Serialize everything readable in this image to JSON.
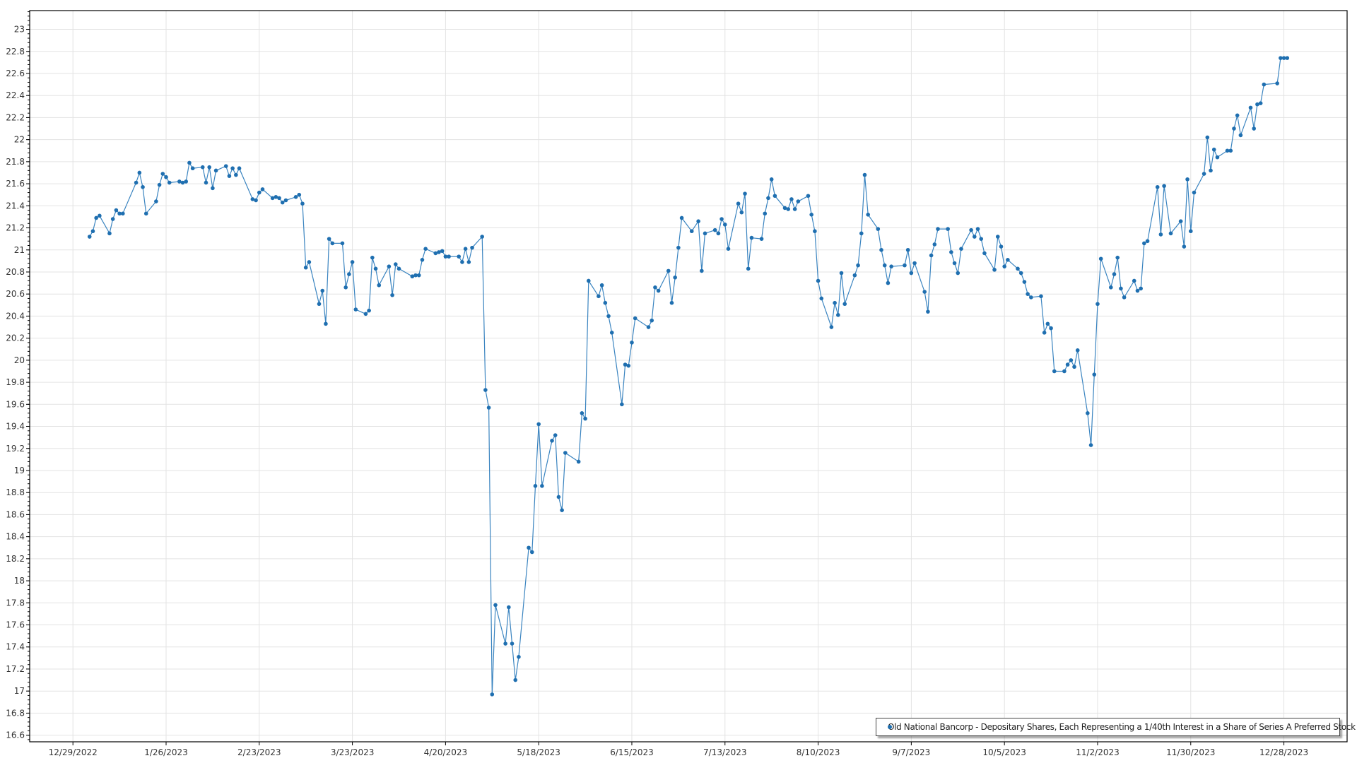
{
  "chart_data": {
    "type": "line",
    "title": "",
    "xlabel": "",
    "ylabel": "",
    "xlim": [
      "2022-12-16",
      "2024-01-16"
    ],
    "ylim": [
      16.54,
      23.17
    ],
    "grid": true,
    "legend_position": "bottom-right",
    "x_tick_labels": [
      "12/29/2022",
      "1/26/2023",
      "2/23/2023",
      "3/23/2023",
      "4/20/2023",
      "5/18/2023",
      "6/15/2023",
      "7/13/2023",
      "8/10/2023",
      "9/7/2023",
      "10/5/2023",
      "11/2/2023",
      "11/30/2023",
      "12/28/2023"
    ],
    "x_ticks": [
      "2022-12-29",
      "2023-01-26",
      "2023-02-23",
      "2023-03-23",
      "2023-04-20",
      "2023-05-18",
      "2023-06-15",
      "2023-07-13",
      "2023-08-10",
      "2023-09-07",
      "2023-10-05",
      "2023-11-02",
      "2023-11-30",
      "2023-12-28"
    ],
    "y_ticks": [
      "16.6",
      "16.8",
      "17",
      "17.2",
      "17.4",
      "17.6",
      "17.8",
      "18",
      "18.2",
      "18.4",
      "18.6",
      "18.8",
      "19",
      "19.2",
      "19.4",
      "19.6",
      "19.8",
      "20",
      "20.2",
      "20.4",
      "20.6",
      "20.8",
      "21",
      "21.2",
      "21.4",
      "21.6",
      "21.8",
      "22",
      "22.2",
      "22.4",
      "22.6",
      "22.8",
      "23"
    ],
    "colors": {
      "series": "#1f6fb0",
      "grid": "#e3e3e3",
      "axis": "#000000"
    },
    "series": [
      {
        "name": "Old National Bancorp - Depositary Shares, Each Representing a 1/40th Interest in a Share of Series A Preferred Stock",
        "points": [
          [
            "2023-01-03",
            21.12
          ],
          [
            "2023-01-04",
            21.17
          ],
          [
            "2023-01-05",
            21.29
          ],
          [
            "2023-01-06",
            21.31
          ],
          [
            "2023-01-09",
            21.15
          ],
          [
            "2023-01-10",
            21.28
          ],
          [
            "2023-01-11",
            21.36
          ],
          [
            "2023-01-12",
            21.33
          ],
          [
            "2023-01-13",
            21.33
          ],
          [
            "2023-01-17",
            21.61
          ],
          [
            "2023-01-18",
            21.7
          ],
          [
            "2023-01-19",
            21.57
          ],
          [
            "2023-01-20",
            21.33
          ],
          [
            "2023-01-23",
            21.44
          ],
          [
            "2023-01-24",
            21.59
          ],
          [
            "2023-01-25",
            21.69
          ],
          [
            "2023-01-26",
            21.66
          ],
          [
            "2023-01-27",
            21.61
          ],
          [
            "2023-01-30",
            21.62
          ],
          [
            "2023-01-31",
            21.61
          ],
          [
            "2023-02-01",
            21.62
          ],
          [
            "2023-02-02",
            21.79
          ],
          [
            "2023-02-03",
            21.74
          ],
          [
            "2023-02-06",
            21.75
          ],
          [
            "2023-02-07",
            21.61
          ],
          [
            "2023-02-08",
            21.75
          ],
          [
            "2023-02-09",
            21.56
          ],
          [
            "2023-02-10",
            21.72
          ],
          [
            "2023-02-13",
            21.76
          ],
          [
            "2023-02-14",
            21.67
          ],
          [
            "2023-02-15",
            21.74
          ],
          [
            "2023-02-16",
            21.68
          ],
          [
            "2023-02-17",
            21.74
          ],
          [
            "2023-02-21",
            21.46
          ],
          [
            "2023-02-22",
            21.45
          ],
          [
            "2023-02-23",
            21.52
          ],
          [
            "2023-02-24",
            21.55
          ],
          [
            "2023-02-27",
            21.47
          ],
          [
            "2023-02-28",
            21.48
          ],
          [
            "2023-03-01",
            21.47
          ],
          [
            "2023-03-02",
            21.43
          ],
          [
            "2023-03-03",
            21.45
          ],
          [
            "2023-03-06",
            21.48
          ],
          [
            "2023-03-07",
            21.5
          ],
          [
            "2023-03-08",
            21.42
          ],
          [
            "2023-03-09",
            20.84
          ],
          [
            "2023-03-10",
            20.89
          ],
          [
            "2023-03-13",
            20.51
          ],
          [
            "2023-03-14",
            20.63
          ],
          [
            "2023-03-15",
            20.33
          ],
          [
            "2023-03-16",
            21.1
          ],
          [
            "2023-03-17",
            21.06
          ],
          [
            "2023-03-20",
            21.06
          ],
          [
            "2023-03-21",
            20.66
          ],
          [
            "2023-03-22",
            20.78
          ],
          [
            "2023-03-23",
            20.89
          ],
          [
            "2023-03-24",
            20.46
          ],
          [
            "2023-03-27",
            20.42
          ],
          [
            "2023-03-28",
            20.45
          ],
          [
            "2023-03-29",
            20.93
          ],
          [
            "2023-03-30",
            20.83
          ],
          [
            "2023-03-31",
            20.68
          ],
          [
            "2023-04-03",
            20.85
          ],
          [
            "2023-04-04",
            20.59
          ],
          [
            "2023-04-05",
            20.87
          ],
          [
            "2023-04-06",
            20.83
          ],
          [
            "2023-04-10",
            20.76
          ],
          [
            "2023-04-11",
            20.77
          ],
          [
            "2023-04-12",
            20.77
          ],
          [
            "2023-04-13",
            20.91
          ],
          [
            "2023-04-14",
            21.01
          ],
          [
            "2023-04-17",
            20.97
          ],
          [
            "2023-04-18",
            20.98
          ],
          [
            "2023-04-19",
            20.99
          ],
          [
            "2023-04-20",
            20.94
          ],
          [
            "2023-04-21",
            20.94
          ],
          [
            "2023-04-24",
            20.94
          ],
          [
            "2023-04-25",
            20.89
          ],
          [
            "2023-04-26",
            21.01
          ],
          [
            "2023-04-27",
            20.89
          ],
          [
            "2023-04-28",
            21.02
          ],
          [
            "2023-05-01",
            21.12
          ],
          [
            "2023-05-02",
            19.73
          ],
          [
            "2023-05-03",
            19.57
          ],
          [
            "2023-05-04",
            16.97
          ],
          [
            "2023-05-05",
            17.78
          ],
          [
            "2023-05-08",
            17.43
          ],
          [
            "2023-05-09",
            17.76
          ],
          [
            "2023-05-10",
            17.43
          ],
          [
            "2023-05-11",
            17.1
          ],
          [
            "2023-05-12",
            17.31
          ],
          [
            "2023-05-15",
            18.3
          ],
          [
            "2023-05-16",
            18.26
          ],
          [
            "2023-05-17",
            18.86
          ],
          [
            "2023-05-18",
            19.42
          ],
          [
            "2023-05-19",
            18.86
          ],
          [
            "2023-05-22",
            19.27
          ],
          [
            "2023-05-23",
            19.32
          ],
          [
            "2023-05-24",
            18.76
          ],
          [
            "2023-05-25",
            18.64
          ],
          [
            "2023-05-26",
            19.16
          ],
          [
            "2023-05-30",
            19.08
          ],
          [
            "2023-05-31",
            19.52
          ],
          [
            "2023-06-01",
            19.47
          ],
          [
            "2023-06-02",
            20.72
          ],
          [
            "2023-06-05",
            20.58
          ],
          [
            "2023-06-06",
            20.68
          ],
          [
            "2023-06-07",
            20.52
          ],
          [
            "2023-06-08",
            20.4
          ],
          [
            "2023-06-09",
            20.25
          ],
          [
            "2023-06-12",
            19.6
          ],
          [
            "2023-06-13",
            19.96
          ],
          [
            "2023-06-14",
            19.95
          ],
          [
            "2023-06-15",
            20.16
          ],
          [
            "2023-06-16",
            20.38
          ],
          [
            "2023-06-20",
            20.3
          ],
          [
            "2023-06-21",
            20.36
          ],
          [
            "2023-06-22",
            20.66
          ],
          [
            "2023-06-23",
            20.63
          ],
          [
            "2023-06-26",
            20.81
          ],
          [
            "2023-06-27",
            20.52
          ],
          [
            "2023-06-28",
            20.75
          ],
          [
            "2023-06-29",
            21.02
          ],
          [
            "2023-06-30",
            21.29
          ],
          [
            "2023-07-03",
            21.17
          ],
          [
            "2023-07-05",
            21.26
          ],
          [
            "2023-07-06",
            20.81
          ],
          [
            "2023-07-07",
            21.15
          ],
          [
            "2023-07-10",
            21.18
          ],
          [
            "2023-07-11",
            21.15
          ],
          [
            "2023-07-12",
            21.28
          ],
          [
            "2023-07-13",
            21.23
          ],
          [
            "2023-07-14",
            21.01
          ],
          [
            "2023-07-17",
            21.42
          ],
          [
            "2023-07-18",
            21.34
          ],
          [
            "2023-07-19",
            21.51
          ],
          [
            "2023-07-20",
            20.83
          ],
          [
            "2023-07-21",
            21.11
          ],
          [
            "2023-07-24",
            21.1
          ],
          [
            "2023-07-25",
            21.33
          ],
          [
            "2023-07-26",
            21.47
          ],
          [
            "2023-07-27",
            21.64
          ],
          [
            "2023-07-28",
            21.49
          ],
          [
            "2023-07-31",
            21.38
          ],
          [
            "2023-08-01",
            21.37
          ],
          [
            "2023-08-02",
            21.46
          ],
          [
            "2023-08-03",
            21.37
          ],
          [
            "2023-08-04",
            21.44
          ],
          [
            "2023-08-07",
            21.49
          ],
          [
            "2023-08-08",
            21.32
          ],
          [
            "2023-08-09",
            21.17
          ],
          [
            "2023-08-10",
            20.72
          ],
          [
            "2023-08-11",
            20.56
          ],
          [
            "2023-08-14",
            20.3
          ],
          [
            "2023-08-15",
            20.52
          ],
          [
            "2023-08-16",
            20.41
          ],
          [
            "2023-08-17",
            20.79
          ],
          [
            "2023-08-18",
            20.51
          ],
          [
            "2023-08-21",
            20.77
          ],
          [
            "2023-08-22",
            20.86
          ],
          [
            "2023-08-23",
            21.15
          ],
          [
            "2023-08-24",
            21.68
          ],
          [
            "2023-08-25",
            21.32
          ],
          [
            "2023-08-28",
            21.19
          ],
          [
            "2023-08-29",
            21.0
          ],
          [
            "2023-08-30",
            20.86
          ],
          [
            "2023-08-31",
            20.7
          ],
          [
            "2023-09-01",
            20.85
          ],
          [
            "2023-09-05",
            20.86
          ],
          [
            "2023-09-06",
            21.0
          ],
          [
            "2023-09-07",
            20.79
          ],
          [
            "2023-09-08",
            20.88
          ],
          [
            "2023-09-11",
            20.62
          ],
          [
            "2023-09-12",
            20.44
          ],
          [
            "2023-09-13",
            20.95
          ],
          [
            "2023-09-14",
            21.05
          ],
          [
            "2023-09-15",
            21.19
          ],
          [
            "2023-09-18",
            21.19
          ],
          [
            "2023-09-19",
            20.98
          ],
          [
            "2023-09-20",
            20.88
          ],
          [
            "2023-09-21",
            20.79
          ],
          [
            "2023-09-22",
            21.01
          ],
          [
            "2023-09-25",
            21.18
          ],
          [
            "2023-09-26",
            21.12
          ],
          [
            "2023-09-27",
            21.19
          ],
          [
            "2023-09-28",
            21.1
          ],
          [
            "2023-09-29",
            20.97
          ],
          [
            "2023-10-02",
            20.82
          ],
          [
            "2023-10-03",
            21.12
          ],
          [
            "2023-10-04",
            21.03
          ],
          [
            "2023-10-05",
            20.85
          ],
          [
            "2023-10-06",
            20.91
          ],
          [
            "2023-10-09",
            20.83
          ],
          [
            "2023-10-10",
            20.79
          ],
          [
            "2023-10-11",
            20.71
          ],
          [
            "2023-10-12",
            20.6
          ],
          [
            "2023-10-13",
            20.57
          ],
          [
            "2023-10-16",
            20.58
          ],
          [
            "2023-10-17",
            20.25
          ],
          [
            "2023-10-18",
            20.33
          ],
          [
            "2023-10-19",
            20.29
          ],
          [
            "2023-10-20",
            19.9
          ],
          [
            "2023-10-23",
            19.9
          ],
          [
            "2023-10-24",
            19.96
          ],
          [
            "2023-10-25",
            20.0
          ],
          [
            "2023-10-26",
            19.94
          ],
          [
            "2023-10-27",
            20.09
          ],
          [
            "2023-10-30",
            19.52
          ],
          [
            "2023-10-31",
            19.23
          ],
          [
            "2023-11-01",
            19.87
          ],
          [
            "2023-11-02",
            20.51
          ],
          [
            "2023-11-03",
            20.92
          ],
          [
            "2023-11-06",
            20.66
          ],
          [
            "2023-11-07",
            20.78
          ],
          [
            "2023-11-08",
            20.93
          ],
          [
            "2023-11-09",
            20.65
          ],
          [
            "2023-11-10",
            20.57
          ],
          [
            "2023-11-13",
            20.72
          ],
          [
            "2023-11-14",
            20.63
          ],
          [
            "2023-11-15",
            20.65
          ],
          [
            "2023-11-16",
            21.06
          ],
          [
            "2023-11-17",
            21.08
          ],
          [
            "2023-11-20",
            21.57
          ],
          [
            "2023-11-21",
            21.14
          ],
          [
            "2023-11-22",
            21.58
          ],
          [
            "2023-11-24",
            21.15
          ],
          [
            "2023-11-27",
            21.26
          ],
          [
            "2023-11-28",
            21.03
          ],
          [
            "2023-11-29",
            21.64
          ],
          [
            "2023-11-30",
            21.17
          ],
          [
            "2023-12-01",
            21.52
          ],
          [
            "2023-12-04",
            21.69
          ],
          [
            "2023-12-05",
            22.02
          ],
          [
            "2023-12-06",
            21.72
          ],
          [
            "2023-12-07",
            21.91
          ],
          [
            "2023-12-08",
            21.84
          ],
          [
            "2023-12-11",
            21.9
          ],
          [
            "2023-12-12",
            21.9
          ],
          [
            "2023-12-13",
            22.1
          ],
          [
            "2023-12-14",
            22.22
          ],
          [
            "2023-12-15",
            22.04
          ],
          [
            "2023-12-18",
            22.29
          ],
          [
            "2023-12-19",
            22.1
          ],
          [
            "2023-12-20",
            22.32
          ],
          [
            "2023-12-21",
            22.33
          ],
          [
            "2023-12-22",
            22.5
          ],
          [
            "2023-12-26",
            22.51
          ],
          [
            "2023-12-27",
            22.74
          ],
          [
            "2023-12-28",
            22.74
          ],
          [
            "2023-12-29",
            22.74
          ]
        ]
      }
    ]
  },
  "legend": {
    "label": "Old National Bancorp - Depositary Shares, Each Representing a 1/40th Interest in a Share of Series A Preferred Stock"
  }
}
